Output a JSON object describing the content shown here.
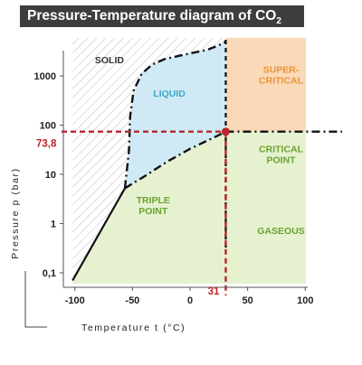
{
  "title": "Pressure-Temperature diagram of CO",
  "title_sub": "2",
  "chart_data": {
    "type": "area",
    "title": "Pressure-Temperature diagram of CO2",
    "xlabel": "Temperature t (°C)",
    "ylabel": "Pressure p (bar)",
    "x_scale": "linear",
    "y_scale": "log",
    "xlim": [
      -110,
      110
    ],
    "ylim": [
      0.06,
      7000
    ],
    "x_ticks": [
      -100,
      -50,
      0,
      50,
      100
    ],
    "x_tick_labels": [
      "-100",
      "-50",
      "0",
      "50",
      "100"
    ],
    "y_ticks": [
      0.1,
      1,
      10,
      100,
      1000
    ],
    "y_tick_labels": [
      "0,1",
      "1",
      "10",
      "100",
      "1000"
    ],
    "grid": false,
    "triple_point": {
      "t": -56.6,
      "p": 5.2
    },
    "critical_point": {
      "t": 31,
      "p": 73.8,
      "t_label": "31",
      "p_label": "73,8"
    },
    "curves": [
      {
        "name": "sublimation",
        "style": "solid",
        "t": [
          -102,
          -56.6
        ],
        "p": [
          0.07,
          5.2
        ]
      },
      {
        "name": "melting",
        "style": "dash-dot",
        "t": [
          -56.6,
          -53,
          -52,
          -49,
          -42,
          -33,
          -22,
          -5,
          15,
          25,
          31
        ],
        "p": [
          5.2,
          30,
          150,
          500,
          1100,
          1700,
          2200,
          2700,
          3400,
          4200,
          5000
        ]
      },
      {
        "name": "vaporization",
        "style": "dash-dot",
        "t": [
          -56.6,
          -40,
          -20,
          0,
          20,
          31
        ],
        "p": [
          5.2,
          9,
          18,
          33,
          55,
          73.8
        ]
      },
      {
        "name": "critical-temperature",
        "style": "dashed",
        "t": [
          31,
          31
        ],
        "p": [
          0.06,
          7000
        ]
      },
      {
        "name": "critical-pressure",
        "style": "dash-dot",
        "t": [
          31,
          110
        ],
        "p": [
          73.8,
          73.8
        ]
      }
    ],
    "regions": [
      {
        "id": "solid",
        "label": [
          "SOLID"
        ],
        "color": "#c8c8c8",
        "pattern": "hatch"
      },
      {
        "id": "liquid",
        "label": [
          "LIQUID"
        ],
        "color": "#cfeaf5"
      },
      {
        "id": "supercritical",
        "label": [
          "SUPER-",
          "CRITICAL"
        ],
        "color": "#fad9b8"
      },
      {
        "id": "triple",
        "label": [
          "TRIPLE",
          "POINT"
        ],
        "color": "#e6f1cf"
      },
      {
        "id": "critical",
        "label": [
          "CRITICAL",
          "POINT"
        ],
        "color": "#e6f1cf"
      },
      {
        "id": "gaseous",
        "label": [
          "GASEOUS"
        ],
        "color": "#e6f1cf"
      }
    ],
    "colors": {
      "label_green": "#6aa32e",
      "label_blue": "#3fa9cf",
      "label_orange": "#e8943a",
      "label_gray": "#333333",
      "critical_red": "#b8262a"
    }
  }
}
